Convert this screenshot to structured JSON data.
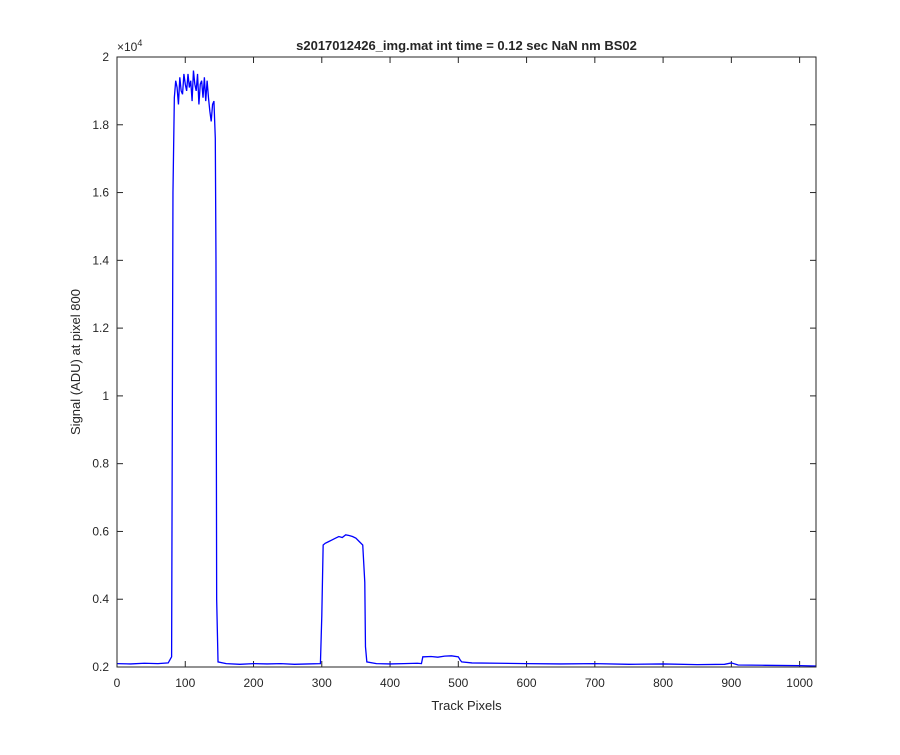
{
  "chart_data": {
    "type": "line",
    "title": "s2017012426_img.mat int time = 0.12 sec  NaN nm BS02",
    "xlabel": "Track Pixels",
    "ylabel": "Signal (ADU) at pixel 800",
    "y_exponent_label": "×10",
    "y_exponent_power": "4",
    "xlim": [
      0,
      1024
    ],
    "ylim": [
      2000,
      20000
    ],
    "x_ticks": [
      0,
      100,
      200,
      300,
      400,
      500,
      600,
      700,
      800,
      900,
      1000
    ],
    "x_tick_labels": [
      "0",
      "100",
      "200",
      "300",
      "400",
      "500",
      "600",
      "700",
      "800",
      "900",
      "1000"
    ],
    "y_ticks": [
      2000,
      4000,
      6000,
      8000,
      10000,
      12000,
      14000,
      16000,
      18000,
      20000
    ],
    "y_tick_labels": [
      "0.2",
      "0.4",
      "0.6",
      "0.8",
      "1",
      "1.2",
      "1.4",
      "1.6",
      "1.8",
      "2"
    ],
    "grid": false,
    "line_color": "#0000ff",
    "series": [
      {
        "x": [
          0,
          20,
          40,
          60,
          75,
          80,
          82,
          84,
          86,
          88,
          90,
          92,
          94,
          96,
          98,
          100,
          102,
          104,
          106,
          108,
          110,
          112,
          114,
          116,
          118,
          120,
          122,
          124,
          126,
          128,
          130,
          132,
          134,
          136,
          138,
          140,
          142,
          144,
          145,
          146,
          148,
          160,
          180,
          200,
          220,
          240,
          260,
          280,
          298,
          300,
          302,
          305,
          310,
          315,
          320,
          325,
          330,
          335,
          340,
          345,
          350,
          355,
          360,
          363,
          364,
          366,
          380,
          400,
          420,
          440,
          446,
          448,
          450,
          460,
          470,
          480,
          490,
          500,
          503,
          505,
          520,
          560,
          600,
          650,
          700,
          750,
          800,
          850,
          890,
          900,
          910,
          950,
          1000,
          1024
        ],
        "y": [
          2100,
          2090,
          2110,
          2100,
          2120,
          2300,
          16000,
          18800,
          19300,
          19100,
          18600,
          19400,
          19000,
          18900,
          19500,
          19200,
          19000,
          19500,
          19100,
          19300,
          18700,
          19600,
          19200,
          19000,
          19500,
          18600,
          19200,
          19300,
          18800,
          19400,
          18700,
          19300,
          18800,
          18400,
          18100,
          18600,
          18700,
          17600,
          14000,
          4000,
          2150,
          2100,
          2080,
          2100,
          2090,
          2100,
          2080,
          2090,
          2100,
          3500,
          5600,
          5650,
          5700,
          5750,
          5800,
          5850,
          5820,
          5900,
          5880,
          5850,
          5800,
          5700,
          5600,
          4500,
          2600,
          2150,
          2100,
          2090,
          2100,
          2110,
          2100,
          2300,
          2300,
          2310,
          2290,
          2320,
          2330,
          2300,
          2200,
          2150,
          2120,
          2110,
          2100,
          2090,
          2100,
          2080,
          2090,
          2070,
          2080,
          2120,
          2060,
          2050,
          2040,
          2030
        ]
      }
    ]
  }
}
